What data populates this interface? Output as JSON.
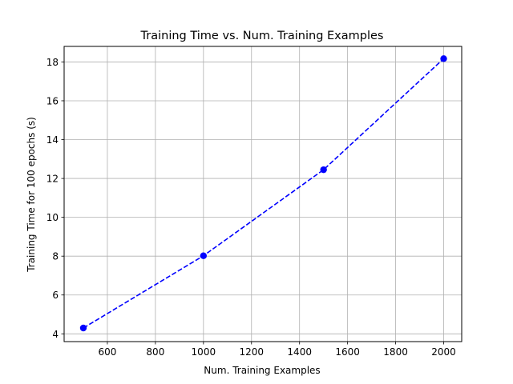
{
  "chart_data": {
    "type": "line",
    "title": "Training Time vs. Num. Training Examples",
    "xlabel": "Num. Training Examples",
    "ylabel": "Training Time for 100 epochs (s)",
    "xlim": [
      420,
      2075
    ],
    "ylim": [
      3.6,
      18.8
    ],
    "xticks": [
      600,
      800,
      1000,
      1200,
      1400,
      1600,
      1800,
      2000
    ],
    "yticks": [
      4,
      6,
      8,
      10,
      12,
      14,
      16,
      18
    ],
    "grid": true,
    "legend": "none",
    "series": [
      {
        "x": [
          500,
          1000,
          1500,
          2000
        ],
        "values": [
          4.3,
          8.02,
          12.45,
          18.17
        ],
        "color": "#0000ff",
        "line_style": "dashed",
        "marker": "circle"
      }
    ]
  }
}
